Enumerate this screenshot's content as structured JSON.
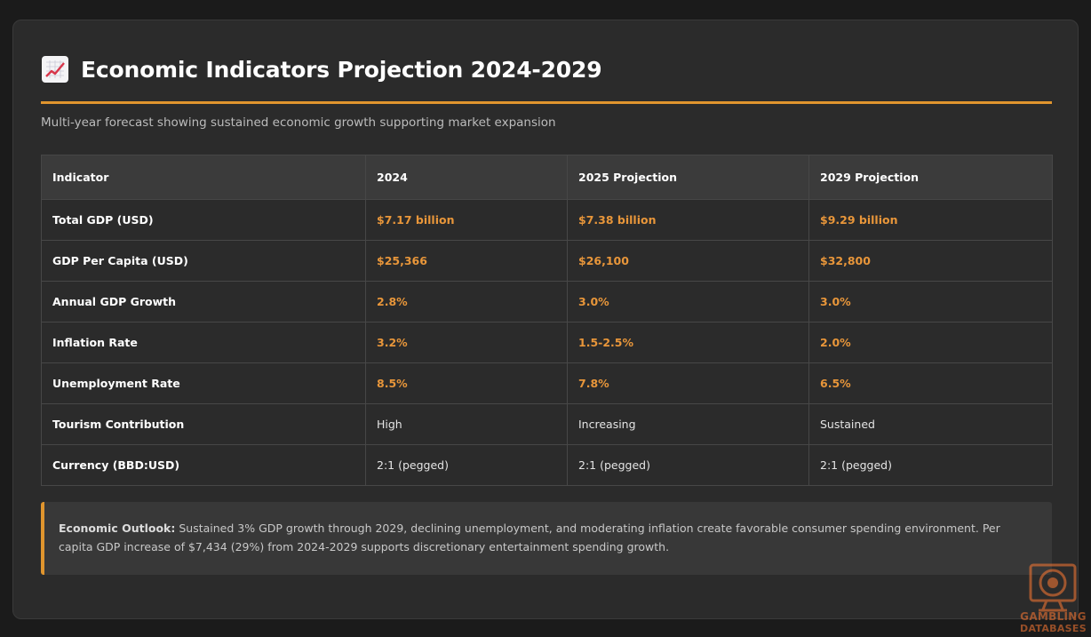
{
  "header": {
    "icon": "chart-increasing-icon",
    "title": "Economic Indicators Projection 2024-2029",
    "subtitle": "Multi-year forecast showing sustained economic growth supporting market expansion"
  },
  "table": {
    "columns": [
      "Indicator",
      "2024",
      "2025 Projection",
      "2029 Projection"
    ],
    "rows": [
      {
        "label": "Total GDP (USD)",
        "cells": [
          "$7.17 billion",
          "$7.38 billion",
          "$9.29 billion"
        ],
        "highlight": true
      },
      {
        "label": "GDP Per Capita (USD)",
        "cells": [
          "$25,366",
          "$26,100",
          "$32,800"
        ],
        "highlight": true
      },
      {
        "label": "Annual GDP Growth",
        "cells": [
          "2.8%",
          "3.0%",
          "3.0%"
        ],
        "highlight": true
      },
      {
        "label": "Inflation Rate",
        "cells": [
          "3.2%",
          "1.5-2.5%",
          "2.0%"
        ],
        "highlight": true
      },
      {
        "label": "Unemployment Rate",
        "cells": [
          "8.5%",
          "7.8%",
          "6.5%"
        ],
        "highlight": true
      },
      {
        "label": "Tourism Contribution",
        "cells": [
          "High",
          "Increasing",
          "Sustained"
        ],
        "highlight": false
      },
      {
        "label": "Currency (BBD:USD)",
        "cells": [
          "2:1 (pegged)",
          "2:1 (pegged)",
          "2:1 (pegged)"
        ],
        "highlight": false
      }
    ]
  },
  "outlook": {
    "label": "Economic Outlook:",
    "text": "Sustained 3% GDP growth through 2029, declining unemployment, and moderating inflation create favorable consumer spending environment. Per capita GDP increase of $7,434 (29%) from 2024-2029 supports discretionary entertainment spending growth."
  },
  "watermark": {
    "line1": "GAMBLING",
    "line2": "DATABASES"
  },
  "colors": {
    "accent": "#e0952e",
    "value": "#e8963a",
    "card": "#2b2b2b",
    "background": "#1b1b1b"
  }
}
